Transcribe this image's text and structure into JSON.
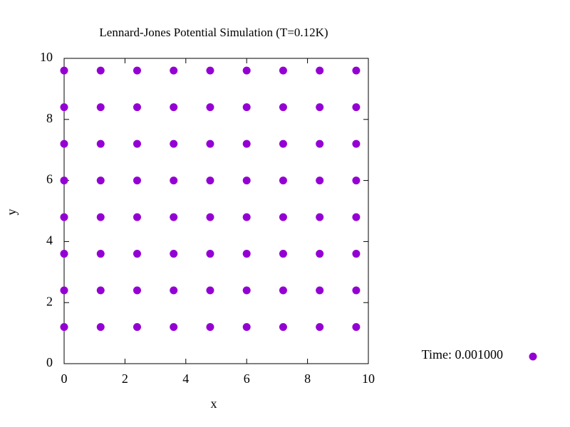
{
  "chart_data": {
    "type": "scatter",
    "title": "Lennard-Jones Potential Simulation (T=0.12K)",
    "xlabel": "x",
    "ylabel": "y",
    "xlim": [
      0,
      10
    ],
    "ylim": [
      0,
      10
    ],
    "xticks": [
      0,
      2,
      4,
      6,
      8,
      10
    ],
    "yticks": [
      0,
      2,
      4,
      6,
      8,
      10
    ],
    "legend": "right",
    "series": [
      {
        "name": "Time: 0.001000",
        "color": "#9400d3",
        "x": [
          0,
          1.2,
          2.4,
          3.6,
          4.8,
          6,
          7.2,
          8.4,
          9.6,
          0,
          1.2,
          2.4,
          3.6,
          4.8,
          6,
          7.2,
          8.4,
          9.6,
          0,
          1.2,
          2.4,
          3.6,
          4.8,
          6,
          7.2,
          8.4,
          9.6,
          0,
          1.2,
          2.4,
          3.6,
          4.8,
          6,
          7.2,
          8.4,
          9.6,
          0,
          1.2,
          2.4,
          3.6,
          4.8,
          6,
          7.2,
          8.4,
          9.6,
          0,
          1.2,
          2.4,
          3.6,
          4.8,
          6,
          7.2,
          8.4,
          9.6,
          0,
          1.2,
          2.4,
          3.6,
          4.8,
          6,
          7.2,
          8.4,
          9.6,
          0,
          1.2,
          2.4,
          3.6,
          4.8,
          6,
          7.2,
          8.4,
          9.6
        ],
        "y": [
          1.2,
          1.2,
          1.2,
          1.2,
          1.2,
          1.2,
          1.2,
          1.2,
          1.2,
          2.4,
          2.4,
          2.4,
          2.4,
          2.4,
          2.4,
          2.4,
          2.4,
          2.4,
          3.6,
          3.6,
          3.6,
          3.6,
          3.6,
          3.6,
          3.6,
          3.6,
          3.6,
          4.8,
          4.8,
          4.8,
          4.8,
          4.8,
          4.8,
          4.8,
          4.8,
          4.8,
          6,
          6,
          6,
          6,
          6,
          6,
          6,
          6,
          6,
          7.2,
          7.2,
          7.2,
          7.2,
          7.2,
          7.2,
          7.2,
          7.2,
          7.2,
          8.4,
          8.4,
          8.4,
          8.4,
          8.4,
          8.4,
          8.4,
          8.4,
          8.4,
          9.6,
          9.6,
          9.6,
          9.6,
          9.6,
          9.6,
          9.6,
          9.6,
          9.6
        ]
      }
    ]
  }
}
